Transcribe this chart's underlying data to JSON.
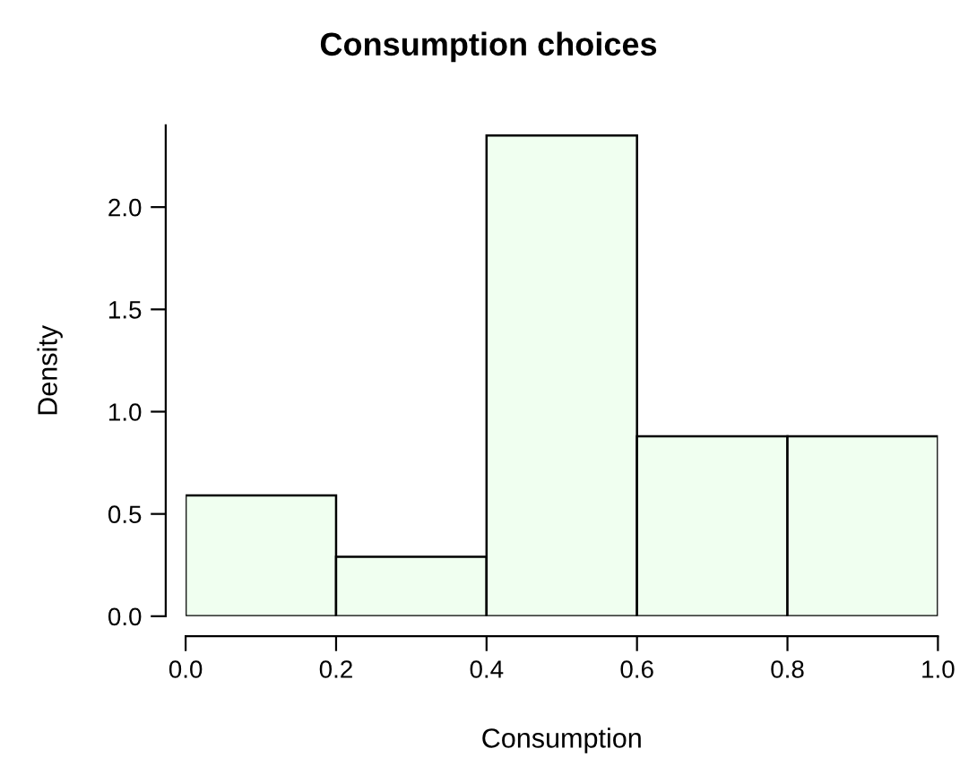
{
  "chart_data": {
    "type": "histogram",
    "title": "Consumption choices",
    "xlabel": "Consumption",
    "ylabel": "Density",
    "bins": [
      0.0,
      0.2,
      0.4,
      0.6,
      0.8,
      1.0
    ],
    "values": [
      0.59,
      0.29,
      2.35,
      0.88,
      0.88
    ],
    "color": "#f0fff0",
    "xlim": [
      0.0,
      1.0
    ],
    "xticks": [
      {
        "value": 0.0,
        "label": "0.0"
      },
      {
        "value": 0.2,
        "label": "0.2"
      },
      {
        "value": 0.4,
        "label": "0.4"
      },
      {
        "value": 0.6,
        "label": "0.6"
      },
      {
        "value": 0.8,
        "label": "0.8"
      },
      {
        "value": 1.0,
        "label": "1.0"
      }
    ],
    "ylim": [
      0,
      2.4
    ],
    "yticks": [
      {
        "value": 0.0,
        "label": "0.0"
      },
      {
        "value": 0.5,
        "label": "0.5"
      },
      {
        "value": 1.0,
        "label": "1.0"
      },
      {
        "value": 1.5,
        "label": "1.5"
      },
      {
        "value": 2.0,
        "label": "2.0"
      }
    ],
    "grid": false
  }
}
